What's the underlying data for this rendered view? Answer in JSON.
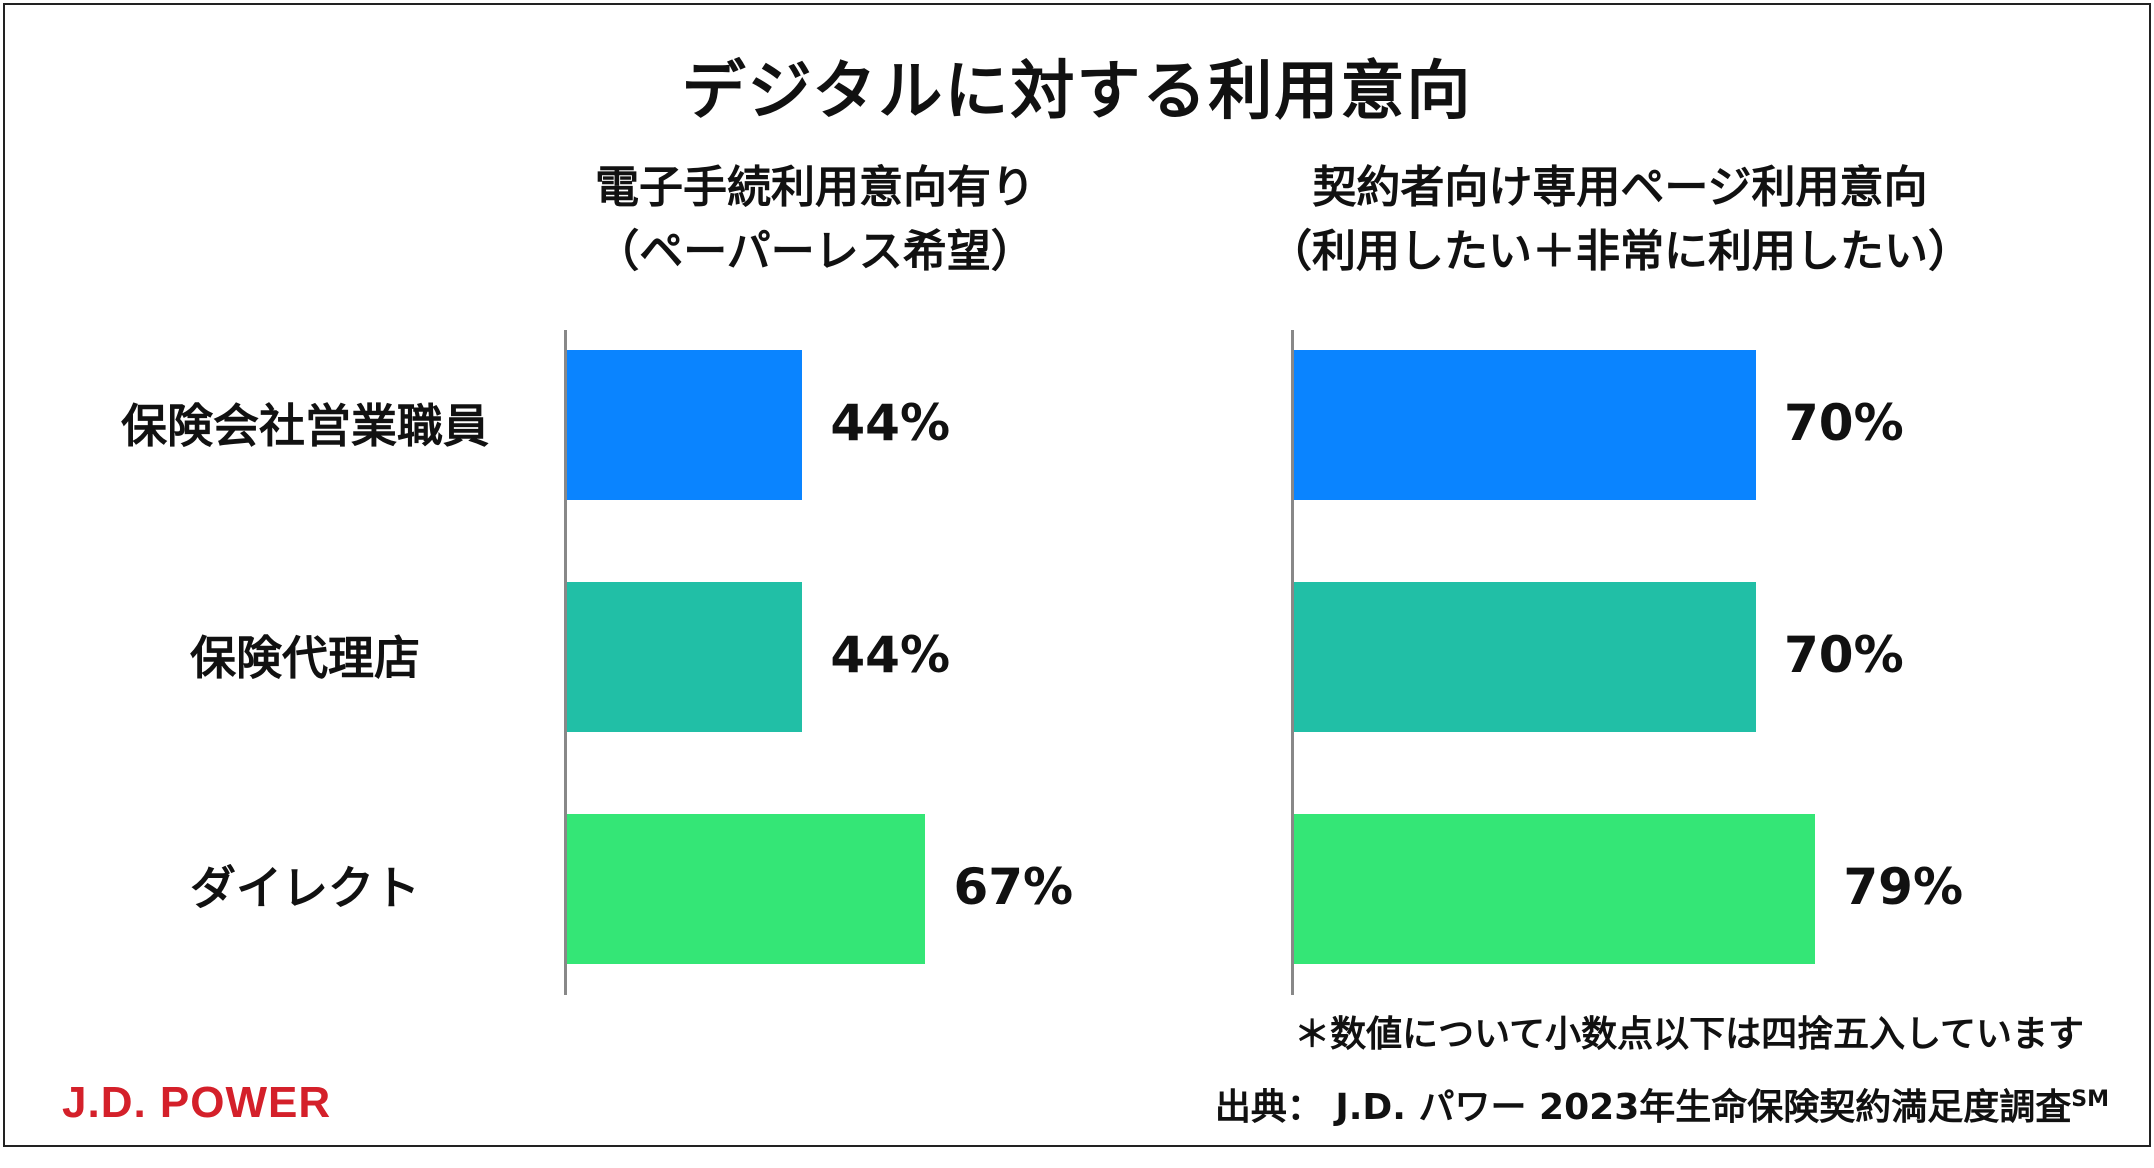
{
  "title": "デジタルに対する利用意向",
  "colors": {
    "series": [
      "#0a84ff",
      "#21bfa6",
      "#34e676"
    ],
    "axis": "#888888",
    "brand": "#d4202a"
  },
  "chart_data": [
    {
      "type": "bar",
      "orientation": "horizontal",
      "title_line1": "電子手続利用意向有り",
      "title_line2": "（ペーパーレス希望）",
      "categories": [
        "保険会社営業職員",
        "保険代理店",
        "ダイレクト"
      ],
      "values": [
        44,
        44,
        67
      ],
      "labels": [
        "44%",
        "44%",
        "67%"
      ],
      "xlim": [
        0,
        100
      ]
    },
    {
      "type": "bar",
      "orientation": "horizontal",
      "title_line1": "契約者向け専用ページ利用意向",
      "title_line2": "（利用したい＋非常に利用したい）",
      "categories": [
        "保険会社営業職員",
        "保険代理店",
        "ダイレクト"
      ],
      "values": [
        70,
        70,
        79
      ],
      "labels": [
        "70%",
        "70%",
        "79%"
      ],
      "xlim": [
        0,
        100
      ]
    }
  ],
  "footnote": "＊数値について小数点以下は四捨五入しています",
  "source": {
    "text": "出典：  J.D. パワー 2023年生命保険契約満足度調査",
    "mark": "SM"
  },
  "logo": "J.D. POWER"
}
